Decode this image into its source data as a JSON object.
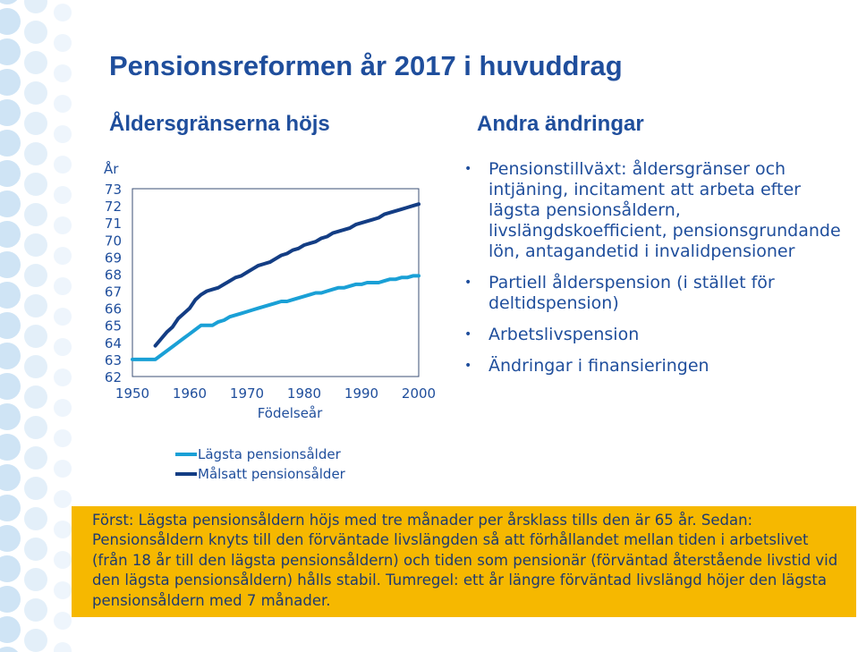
{
  "title": "Pensionsreformen år 2017 i huvuddrag",
  "left_heading": "Åldersgränserna höjs",
  "right_heading": "Andra ändringar",
  "bullets": [
    "Pensionstillväxt: åldersgränser och intjäning, incitament att arbeta efter lägsta pensionsåldern, livslängdskoefficient, pensionsgrundande lön, antagandetid i invalidpensioner",
    "Partiell ålderspension (i stället för deltidspension)",
    "Arbetslivspension",
    "Ändringar i finansieringen"
  ],
  "note": "Först: Lägsta pensionsåldern höjs med tre månader per årsklass tills den är 65 år. Sedan: Pensionsåldern knyts till den förväntade livslängden så att förhållandet mellan tiden i arbetslivet (från 18 år till den lägsta pensionsåldern) och tiden som pensionär (förväntad återstående livstid vid den lägsta pensionsåldern) hålls stabil. Tumregel: ett år längre förväntad livslängd höjer den lägsta pensionsåldern med 7 månader.",
  "colors": {
    "heading": "#1f4e9c",
    "series_min": "#1aa0d6",
    "series_target": "#133d84",
    "note_bg": "#f6b800"
  },
  "chart_data": {
    "type": "line",
    "ylabel": "År",
    "xlabel": "Födelseår",
    "xlim": [
      1950,
      2000
    ],
    "ylim": [
      62,
      73
    ],
    "x_ticks": [
      1950,
      1960,
      1970,
      1980,
      1990,
      2000
    ],
    "y_ticks": [
      62,
      63,
      64,
      65,
      66,
      67,
      68,
      69,
      70,
      71,
      72,
      73
    ],
    "grid": false,
    "legend_position": "bottom",
    "series": [
      {
        "name": "Lägsta pensionsålder",
        "x": [
          1950,
          1954,
          1955,
          1956,
          1957,
          1958,
          1959,
          1960,
          1961,
          1962,
          1963,
          1964,
          1965,
          1966,
          1967,
          1968,
          1969,
          1970,
          1971,
          1972,
          1973,
          1974,
          1975,
          1976,
          1977,
          1978,
          1979,
          1980,
          1981,
          1982,
          1983,
          1984,
          1985,
          1986,
          1987,
          1988,
          1989,
          1990,
          1991,
          1992,
          1993,
          1994,
          1995,
          1996,
          1997,
          1998,
          1999,
          2000
        ],
        "values": [
          63,
          63,
          63.25,
          63.5,
          63.75,
          64,
          64.25,
          64.5,
          64.75,
          65,
          65,
          65,
          65.2,
          65.3,
          65.5,
          65.6,
          65.7,
          65.8,
          65.9,
          66,
          66.1,
          66.2,
          66.3,
          66.4,
          66.4,
          66.5,
          66.6,
          66.7,
          66.8,
          66.9,
          66.9,
          67,
          67.1,
          67.2,
          67.2,
          67.3,
          67.4,
          67.4,
          67.5,
          67.5,
          67.5,
          67.6,
          67.7,
          67.7,
          67.8,
          67.8,
          67.9,
          67.9
        ]
      },
      {
        "name": "Målsatt pensionsålder",
        "x": [
          1954,
          1955,
          1956,
          1957,
          1958,
          1959,
          1960,
          1961,
          1962,
          1963,
          1964,
          1965,
          1966,
          1967,
          1968,
          1969,
          1970,
          1971,
          1972,
          1973,
          1974,
          1975,
          1976,
          1977,
          1978,
          1979,
          1980,
          1981,
          1982,
          1983,
          1984,
          1985,
          1986,
          1987,
          1988,
          1989,
          1990,
          1991,
          1992,
          1993,
          1994,
          1995,
          1996,
          1997,
          1998,
          1999,
          2000
        ],
        "values": [
          63.8,
          64.2,
          64.6,
          64.9,
          65.4,
          65.7,
          66,
          66.5,
          66.8,
          67,
          67.1,
          67.2,
          67.4,
          67.6,
          67.8,
          67.9,
          68.1,
          68.3,
          68.5,
          68.6,
          68.7,
          68.9,
          69.1,
          69.2,
          69.4,
          69.5,
          69.7,
          69.8,
          69.9,
          70.1,
          70.2,
          70.4,
          70.5,
          70.6,
          70.7,
          70.9,
          71,
          71.1,
          71.2,
          71.3,
          71.5,
          71.6,
          71.7,
          71.8,
          71.9,
          72,
          72.1
        ]
      }
    ]
  }
}
